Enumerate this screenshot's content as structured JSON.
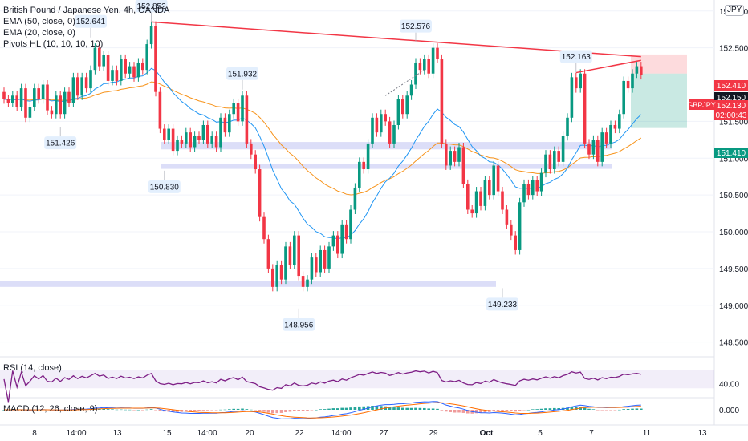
{
  "header": {
    "symbol_line": "British Pound / Japanese Yen, 4h, OANDA",
    "indicators": [
      "EMA (50, close, 0)",
      "EMA (20, close, 0)",
      "Pivots HL (10, 10, 10, 10)"
    ],
    "currency_badge": "JPY"
  },
  "price_axis": {
    "ticks": [
      "153.000",
      "152.500",
      "151.500",
      "151.000",
      "150.500",
      "150.000",
      "149.500",
      "149.000",
      "148.500"
    ],
    "badges": [
      {
        "label": "152.410",
        "color": "#f23645",
        "text_color": "#ffffff"
      },
      {
        "label": "152.150",
        "color": "#131722",
        "text_color": "#ffffff"
      },
      {
        "label": "152.130",
        "color": "#f23645",
        "text_color": "#ffffff"
      },
      {
        "label": "02:00:43",
        "color": "#f23645",
        "text_color": "#ffffff"
      },
      {
        "label": "151.410",
        "color": "#089981",
        "text_color": "#ffffff"
      }
    ],
    "symbol_tag": "GBPJPY"
  },
  "time_axis": {
    "ticks": [
      "8",
      "14:00",
      "13",
      "15",
      "14:00",
      "20",
      "22",
      "14:00",
      "27",
      "29",
      "Oct",
      "5",
      "7",
      "11",
      "13"
    ]
  },
  "pivots": [
    "152.641",
    "152.852",
    "151.426",
    "151.932",
    "150.830",
    "148.956",
    "152.576",
    "149.233",
    "152.163"
  ],
  "rsi": {
    "label": "RSI (14, close)",
    "value_tick": "40.00"
  },
  "macd": {
    "label": "MACD (12, 26, close, 9)",
    "value_tick": "0.000"
  },
  "chart_data": {
    "type": "candlestick",
    "symbol": "GBPJPY",
    "timeframe": "4h",
    "ylim": [
      148.3,
      153.15
    ],
    "candles": [
      {
        "o": 151.9,
        "c": 151.8
      },
      {
        "o": 151.8,
        "c": 151.75
      },
      {
        "o": 151.75,
        "c": 151.85
      },
      {
        "o": 151.85,
        "c": 151.7
      },
      {
        "o": 151.7,
        "c": 151.95
      },
      {
        "o": 151.95,
        "c": 151.55
      },
      {
        "o": 151.55,
        "c": 151.7
      },
      {
        "o": 151.7,
        "c": 151.95
      },
      {
        "o": 151.95,
        "c": 151.8
      },
      {
        "o": 151.8,
        "c": 152.0
      },
      {
        "o": 152.0,
        "c": 151.65
      },
      {
        "o": 151.65,
        "c": 151.6
      },
      {
        "o": 151.6,
        "c": 151.85
      },
      {
        "o": 151.85,
        "c": 151.6
      },
      {
        "o": 151.6,
        "c": 151.9
      },
      {
        "o": 151.9,
        "c": 151.75
      },
      {
        "o": 151.75,
        "c": 152.1
      },
      {
        "o": 152.1,
        "c": 151.85
      },
      {
        "o": 151.85,
        "c": 152.1
      },
      {
        "o": 152.1,
        "c": 151.95
      },
      {
        "o": 151.95,
        "c": 152.2
      },
      {
        "o": 152.2,
        "c": 152.5
      },
      {
        "o": 152.5,
        "c": 152.25
      },
      {
        "o": 152.25,
        "c": 152.4
      },
      {
        "o": 152.4,
        "c": 152.05
      },
      {
        "o": 152.05,
        "c": 152.2
      },
      {
        "o": 152.2,
        "c": 152.05
      },
      {
        "o": 152.05,
        "c": 152.35
      },
      {
        "o": 152.35,
        "c": 152.15
      },
      {
        "o": 152.15,
        "c": 152.25
      },
      {
        "o": 152.25,
        "c": 152.1
      },
      {
        "o": 152.1,
        "c": 152.3
      },
      {
        "o": 152.3,
        "c": 152.2
      },
      {
        "o": 152.2,
        "c": 152.55
      },
      {
        "o": 152.55,
        "c": 152.8
      },
      {
        "o": 152.8,
        "c": 151.9
      },
      {
        "o": 151.9,
        "c": 151.4
      },
      {
        "o": 151.4,
        "c": 151.25
      },
      {
        "o": 151.25,
        "c": 151.4
      },
      {
        "o": 151.4,
        "c": 151.1
      },
      {
        "o": 151.1,
        "c": 151.25
      },
      {
        "o": 151.25,
        "c": 151.2
      },
      {
        "o": 151.2,
        "c": 151.35
      },
      {
        "o": 151.35,
        "c": 151.15
      },
      {
        "o": 151.15,
        "c": 151.3
      },
      {
        "o": 151.3,
        "c": 151.25
      },
      {
        "o": 151.25,
        "c": 151.45
      },
      {
        "o": 151.45,
        "c": 151.2
      },
      {
        "o": 151.2,
        "c": 151.3
      },
      {
        "o": 151.3,
        "c": 151.15
      },
      {
        "o": 151.15,
        "c": 151.55
      },
      {
        "o": 151.55,
        "c": 151.35
      },
      {
        "o": 151.35,
        "c": 151.6
      },
      {
        "o": 151.6,
        "c": 151.75
      },
      {
        "o": 151.75,
        "c": 151.5
      },
      {
        "o": 151.5,
        "c": 151.85
      },
      {
        "o": 151.85,
        "c": 151.2
      },
      {
        "o": 151.2,
        "c": 151.05
      },
      {
        "o": 151.05,
        "c": 150.85
      },
      {
        "o": 150.85,
        "c": 150.2
      },
      {
        "o": 150.2,
        "c": 149.9
      },
      {
        "o": 149.9,
        "c": 149.5
      },
      {
        "o": 149.5,
        "c": 149.25
      },
      {
        "o": 149.25,
        "c": 149.55
      },
      {
        "o": 149.55,
        "c": 149.35
      },
      {
        "o": 149.35,
        "c": 149.8
      },
      {
        "o": 149.8,
        "c": 149.55
      },
      {
        "o": 149.55,
        "c": 149.95
      },
      {
        "o": 149.95,
        "c": 149.4
      },
      {
        "o": 149.4,
        "c": 149.25
      },
      {
        "o": 149.25,
        "c": 149.35
      },
      {
        "o": 149.35,
        "c": 149.65
      },
      {
        "o": 149.65,
        "c": 149.45
      },
      {
        "o": 149.45,
        "c": 149.75
      },
      {
        "o": 149.75,
        "c": 149.5
      },
      {
        "o": 149.5,
        "c": 149.8
      },
      {
        "o": 149.8,
        "c": 149.95
      },
      {
        "o": 149.95,
        "c": 149.7
      },
      {
        "o": 149.7,
        "c": 150.1
      },
      {
        "o": 150.1,
        "c": 149.9
      },
      {
        "o": 149.9,
        "c": 150.3
      },
      {
        "o": 150.3,
        "c": 150.6
      },
      {
        "o": 150.6,
        "c": 150.95
      },
      {
        "o": 150.95,
        "c": 150.85
      },
      {
        "o": 150.85,
        "c": 151.2
      },
      {
        "o": 151.2,
        "c": 151.55
      },
      {
        "o": 151.55,
        "c": 151.35
      },
      {
        "o": 151.35,
        "c": 151.6
      },
      {
        "o": 151.6,
        "c": 151.5
      },
      {
        "o": 151.5,
        "c": 151.2
      },
      {
        "o": 151.2,
        "c": 151.45
      },
      {
        "o": 151.45,
        "c": 151.8
      },
      {
        "o": 151.8,
        "c": 151.6
      },
      {
        "o": 151.6,
        "c": 151.85
      },
      {
        "o": 151.85,
        "c": 152.0
      },
      {
        "o": 152.0,
        "c": 152.3
      },
      {
        "o": 152.3,
        "c": 152.2
      },
      {
        "o": 152.2,
        "c": 152.35
      },
      {
        "o": 152.35,
        "c": 152.15
      },
      {
        "o": 152.15,
        "c": 152.5
      },
      {
        "o": 152.5,
        "c": 152.35
      },
      {
        "o": 152.35,
        "c": 151.2
      },
      {
        "o": 151.2,
        "c": 150.9
      },
      {
        "o": 150.9,
        "c": 151.1
      },
      {
        "o": 151.1,
        "c": 150.95
      },
      {
        "o": 150.95,
        "c": 151.15
      },
      {
        "o": 151.15,
        "c": 150.65
      },
      {
        "o": 150.65,
        "c": 150.3
      },
      {
        "o": 150.3,
        "c": 150.25
      },
      {
        "o": 150.25,
        "c": 150.55
      },
      {
        "o": 150.55,
        "c": 150.35
      },
      {
        "o": 150.35,
        "c": 150.7
      },
      {
        "o": 150.7,
        "c": 150.5
      },
      {
        "o": 150.5,
        "c": 150.9
      },
      {
        "o": 150.9,
        "c": 150.55
      },
      {
        "o": 150.55,
        "c": 150.3
      },
      {
        "o": 150.3,
        "c": 150.1
      },
      {
        "o": 150.1,
        "c": 149.95
      },
      {
        "o": 149.95,
        "c": 149.75
      },
      {
        "o": 149.75,
        "c": 150.4
      },
      {
        "o": 150.4,
        "c": 150.65
      },
      {
        "o": 150.65,
        "c": 150.5
      },
      {
        "o": 150.5,
        "c": 150.7
      },
      {
        "o": 150.7,
        "c": 150.55
      },
      {
        "o": 150.55,
        "c": 150.8
      },
      {
        "o": 150.8,
        "c": 151.05
      },
      {
        "o": 151.05,
        "c": 150.85
      },
      {
        "o": 150.85,
        "c": 151.1
      },
      {
        "o": 151.1,
        "c": 150.95
      },
      {
        "o": 150.95,
        "c": 151.3
      },
      {
        "o": 151.3,
        "c": 151.55
      },
      {
        "o": 151.55,
        "c": 152.1
      },
      {
        "o": 152.1,
        "c": 151.95
      },
      {
        "o": 151.95,
        "c": 152.15
      },
      {
        "o": 152.15,
        "c": 151.2
      },
      {
        "o": 151.2,
        "c": 151.05
      },
      {
        "o": 151.05,
        "c": 151.25
      },
      {
        "o": 151.25,
        "c": 150.95
      },
      {
        "o": 150.95,
        "c": 151.35
      },
      {
        "o": 151.35,
        "c": 151.2
      },
      {
        "o": 151.2,
        "c": 151.45
      },
      {
        "o": 151.45,
        "c": 151.4
      },
      {
        "o": 151.4,
        "c": 151.6
      },
      {
        "o": 151.6,
        "c": 152.05
      },
      {
        "o": 152.05,
        "c": 151.95
      },
      {
        "o": 151.95,
        "c": 152.15
      },
      {
        "o": 152.15,
        "c": 152.25
      },
      {
        "o": 152.25,
        "c": 152.13
      }
    ],
    "pivot_points": [
      {
        "label": "152.641",
        "candle": 20,
        "price": 152.641,
        "type": "high"
      },
      {
        "label": "152.852",
        "candle": 34,
        "price": 152.852,
        "type": "high"
      },
      {
        "label": "151.426",
        "candle": 13,
        "price": 151.426,
        "type": "low"
      },
      {
        "label": "151.932",
        "candle": 55,
        "price": 151.932,
        "type": "high"
      },
      {
        "label": "150.830",
        "candle": 37,
        "price": 150.83,
        "type": "low"
      },
      {
        "label": "148.956",
        "candle": 68,
        "price": 148.956,
        "type": "low"
      },
      {
        "label": "152.576",
        "candle": 95,
        "price": 152.576,
        "type": "high"
      },
      {
        "label": "149.233",
        "candle": 115,
        "price": 149.233,
        "type": "low"
      },
      {
        "label": "152.163",
        "candle": 132,
        "price": 152.163,
        "type": "high"
      }
    ],
    "support_zones": [
      {
        "price_low": 151.12,
        "price_high": 151.22
      },
      {
        "price_low": 150.86,
        "price_high": 150.92
      },
      {
        "price_low": 149.25,
        "price_high": 149.33
      }
    ],
    "trendline": {
      "start": {
        "candle": 34,
        "price": 152.852
      },
      "end": {
        "candle": 147,
        "price": 152.38
      }
    },
    "position": {
      "entry": 152.15,
      "stop": 152.41,
      "target": 151.41
    },
    "rsi_ylim": [
      20,
      90
    ],
    "macd_ylim": [
      -0.8,
      0.6
    ]
  }
}
